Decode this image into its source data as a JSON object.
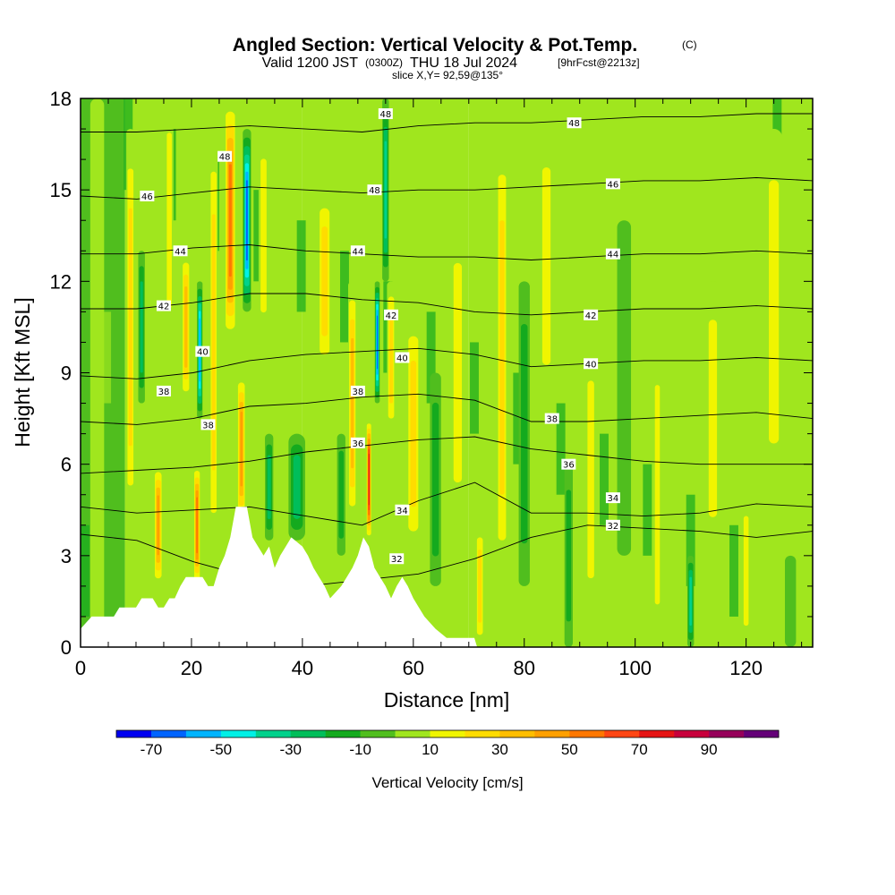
{
  "title": {
    "main": "Angled Section: Vertical Velocity & Pot.Temp.",
    "main_unit": "(C)",
    "valid_prefix": "Valid 1200 JST",
    "valid_z": "(0300Z)",
    "valid_date": "THU 18 Jul 2024",
    "valid_fcst": "[9hrFcst@2213z]",
    "slice": "slice X,Y= 92,59@135°"
  },
  "chart_data": {
    "type": "heatmap",
    "xlabel": "Distance [nm]",
    "ylabel": "Height [Kft MSL]",
    "xlim": [
      0,
      132
    ],
    "ylim": [
      0,
      18
    ],
    "x_ticks": [
      "0",
      "20",
      "40",
      "60",
      "80",
      "100",
      "120"
    ],
    "y_ticks": [
      "0",
      "3",
      "6",
      "9",
      "12",
      "15",
      "18"
    ],
    "colorbar": {
      "label": "Vertical Velocity [cm/s]",
      "tick_labels": [
        "-70",
        "-50",
        "-30",
        "-10",
        "10",
        "30",
        "50",
        "70",
        "90"
      ],
      "levels": [
        -80,
        -70,
        -60,
        -50,
        -40,
        -30,
        -20,
        -10,
        0,
        10,
        20,
        30,
        40,
        50,
        60,
        70,
        80,
        90,
        100
      ],
      "colors": [
        "#0000f0",
        "#0064ff",
        "#00b4ff",
        "#00f0e6",
        "#00d28c",
        "#00be5a",
        "#14aa1e",
        "#50be1e",
        "#a0e61e",
        "#f0f500",
        "#ffdc00",
        "#ffbe00",
        "#ffa000",
        "#ff7800",
        "#ff4614",
        "#e61414",
        "#c8003c",
        "#96005a",
        "#640078"
      ]
    },
    "terrain_kft": [
      [
        0,
        0.6
      ],
      [
        1,
        0.8
      ],
      [
        2,
        1.0
      ],
      [
        6,
        1.0
      ],
      [
        7,
        1.3
      ],
      [
        10,
        1.3
      ],
      [
        11,
        1.6
      ],
      [
        13,
        1.6
      ],
      [
        14,
        1.3
      ],
      [
        15,
        1.3
      ],
      [
        16,
        1.6
      ],
      [
        17,
        1.6
      ],
      [
        18,
        2.0
      ],
      [
        19,
        2.3
      ],
      [
        22,
        2.3
      ],
      [
        23,
        2.0
      ],
      [
        24,
        2.0
      ],
      [
        25,
        2.6
      ],
      [
        26,
        3.0
      ],
      [
        27,
        3.6
      ],
      [
        28,
        4.6
      ],
      [
        30,
        4.6
      ],
      [
        31,
        3.6
      ],
      [
        32,
        3.3
      ],
      [
        33,
        3.0
      ],
      [
        34,
        3.3
      ],
      [
        35,
        2.6
      ],
      [
        36,
        3.0
      ],
      [
        37,
        3.3
      ],
      [
        38,
        3.6
      ],
      [
        40,
        3.3
      ],
      [
        41,
        3.0
      ],
      [
        42,
        2.6
      ],
      [
        43,
        2.3
      ],
      [
        44,
        2.0
      ],
      [
        45,
        1.6
      ],
      [
        47,
        2.0
      ],
      [
        48,
        2.3
      ],
      [
        49,
        2.6
      ],
      [
        50,
        3.0
      ],
      [
        51,
        3.6
      ],
      [
        52,
        3.3
      ],
      [
        53,
        2.6
      ],
      [
        54,
        2.3
      ],
      [
        55,
        2.0
      ],
      [
        56,
        1.6
      ],
      [
        57,
        2.0
      ],
      [
        58,
        2.3
      ],
      [
        59,
        2.0
      ],
      [
        60,
        1.6
      ],
      [
        61,
        1.3
      ],
      [
        62,
        1.0
      ],
      [
        64,
        0.6
      ],
      [
        66,
        0.3
      ],
      [
        68,
        0.3
      ],
      [
        71,
        0.3
      ],
      [
        71.5,
        0
      ]
    ],
    "theta_isolines": [
      {
        "label": "32",
        "h": [
          3.7,
          3.5,
          2.8,
          2.3,
          2.0,
          2.2,
          2.4,
          2.9,
          3.6,
          4.0,
          3.9,
          3.8,
          3.6,
          3.8
        ]
      },
      {
        "label": "34",
        "h": [
          4.6,
          4.4,
          4.5,
          4.6,
          4.3,
          4.0,
          4.8,
          5.4,
          4.4,
          4.4,
          4.3,
          4.4,
          4.7,
          4.6
        ]
      },
      {
        "label": "36",
        "h": [
          5.7,
          5.8,
          5.9,
          6.1,
          6.4,
          6.6,
          6.8,
          6.9,
          6.5,
          6.3,
          6.1,
          6.0,
          6.0,
          6.0
        ]
      },
      {
        "label": "38",
        "h": [
          7.4,
          7.3,
          7.5,
          7.9,
          8.0,
          8.2,
          8.3,
          8.1,
          7.4,
          7.4,
          7.5,
          7.6,
          7.7,
          7.5
        ]
      },
      {
        "label": "40",
        "h": [
          8.9,
          8.8,
          9.0,
          9.4,
          9.6,
          9.7,
          9.8,
          9.6,
          9.2,
          9.3,
          9.4,
          9.4,
          9.5,
          9.4
        ]
      },
      {
        "label": "42",
        "h": [
          11.1,
          11.1,
          11.3,
          11.6,
          11.6,
          11.4,
          11.3,
          11.0,
          10.9,
          11.0,
          11.1,
          11.1,
          11.2,
          11.1
        ]
      },
      {
        "label": "44",
        "h": [
          12.9,
          12.9,
          13.1,
          13.2,
          13.0,
          12.9,
          12.8,
          12.8,
          12.7,
          12.8,
          12.9,
          12.9,
          13.0,
          12.9
        ]
      },
      {
        "label": "46",
        "h": [
          14.8,
          14.7,
          14.9,
          15.1,
          15.0,
          14.9,
          15.0,
          15.0,
          15.1,
          15.2,
          15.3,
          15.3,
          15.4,
          15.3
        ]
      },
      {
        "label": "48",
        "h": [
          16.9,
          16.9,
          17.0,
          17.1,
          17.0,
          16.9,
          17.1,
          17.2,
          17.2,
          17.3,
          17.4,
          17.4,
          17.5,
          17.5
        ]
      }
    ],
    "isoline_labels": [
      {
        "text": "46",
        "x": 12,
        "h": 14.8
      },
      {
        "text": "48",
        "x": 26,
        "h": 16.1
      },
      {
        "text": "44",
        "x": 18,
        "h": 13.0
      },
      {
        "text": "42",
        "x": 15,
        "h": 11.2
      },
      {
        "text": "40",
        "x": 22,
        "h": 9.7
      },
      {
        "text": "38",
        "x": 15,
        "h": 8.4
      },
      {
        "text": "38",
        "x": 23,
        "h": 7.3
      },
      {
        "text": "48",
        "x": 55,
        "h": 17.5
      },
      {
        "text": "48",
        "x": 53,
        "h": 15.0
      },
      {
        "text": "44",
        "x": 50,
        "h": 13.0
      },
      {
        "text": "42",
        "x": 56,
        "h": 10.9
      },
      {
        "text": "40",
        "x": 58,
        "h": 9.5
      },
      {
        "text": "38",
        "x": 50,
        "h": 8.4
      },
      {
        "text": "36",
        "x": 50,
        "h": 6.7
      },
      {
        "text": "34",
        "x": 58,
        "h": 4.5
      },
      {
        "text": "32",
        "x": 57,
        "h": 2.9
      },
      {
        "text": "48",
        "x": 89,
        "h": 17.2
      },
      {
        "text": "46",
        "x": 96,
        "h": 15.2
      },
      {
        "text": "44",
        "x": 96,
        "h": 12.9
      },
      {
        "text": "42",
        "x": 92,
        "h": 10.9
      },
      {
        "text": "40",
        "x": 92,
        "h": 9.3
      },
      {
        "text": "38",
        "x": 85,
        "h": 7.5
      },
      {
        "text": "36",
        "x": 88,
        "h": 6.0
      },
      {
        "text": "34",
        "x": 96,
        "h": 4.9
      },
      {
        "text": "32",
        "x": 96,
        "h": 4.0
      }
    ],
    "velocity_features": [
      {
        "x": 3,
        "h0": 0,
        "h1": 18,
        "w": 2.5,
        "v": 10
      },
      {
        "x": 9,
        "h0": 4,
        "h1": 17,
        "w": 1.5,
        "v": 25
      },
      {
        "x": 11,
        "h0": 8,
        "h1": 13,
        "w": 1.2,
        "v": -30
      },
      {
        "x": 14,
        "h0": 2,
        "h1": 6,
        "w": 1.5,
        "v": 45
      },
      {
        "x": 16,
        "h0": 10,
        "h1": 18,
        "w": 1.5,
        "v": 15
      },
      {
        "x": 19,
        "h0": 8,
        "h1": 13,
        "w": 1.5,
        "v": 40
      },
      {
        "x": 21,
        "h0": 2,
        "h1": 6,
        "w": 1.2,
        "v": 55
      },
      {
        "x": 21.5,
        "h0": 7.5,
        "h1": 12,
        "w": 1.0,
        "v": -60
      },
      {
        "x": 24,
        "h0": 3,
        "h1": 17,
        "w": 1.5,
        "v": 30
      },
      {
        "x": 27,
        "h0": 10,
        "h1": 18,
        "w": 2.0,
        "v": 55
      },
      {
        "x": 30,
        "h0": 11,
        "h1": 17,
        "w": 1.5,
        "v": -65
      },
      {
        "x": 29,
        "h0": 4,
        "h1": 9,
        "w": 1.5,
        "v": 45
      },
      {
        "x": 34,
        "h0": 3.5,
        "h1": 7,
        "w": 1.5,
        "v": -30
      },
      {
        "x": 33,
        "h0": 10,
        "h1": 17,
        "w": 1.8,
        "v": 20
      },
      {
        "x": 39,
        "h0": 3.5,
        "h1": 7,
        "w": 3.0,
        "v": -25
      },
      {
        "x": 44,
        "h0": 9,
        "h1": 15,
        "w": 2.5,
        "v": 30
      },
      {
        "x": 47,
        "h0": 3,
        "h1": 7,
        "w": 1.5,
        "v": -20
      },
      {
        "x": 49,
        "h0": 4,
        "h1": 12,
        "w": 1.5,
        "v": 35
      },
      {
        "x": 52,
        "h0": 3.5,
        "h1": 7.5,
        "w": 0.9,
        "v": 80
      },
      {
        "x": 53.5,
        "h0": 8,
        "h1": 12,
        "w": 0.9,
        "v": -65
      },
      {
        "x": 55,
        "h0": 12,
        "h1": 18,
        "w": 1.2,
        "v": -40
      },
      {
        "x": 56,
        "h0": 7,
        "h1": 12,
        "w": 1.5,
        "v": 30
      },
      {
        "x": 60,
        "h0": 3,
        "h1": 11,
        "w": 2.5,
        "v": 25
      },
      {
        "x": 64,
        "h0": 2,
        "h1": 9,
        "w": 2.0,
        "v": -15
      },
      {
        "x": 68,
        "h0": 4,
        "h1": 14,
        "w": 2.5,
        "v": 15
      },
      {
        "x": 72,
        "h0": 0,
        "h1": 4,
        "w": 1.5,
        "v": 25
      },
      {
        "x": 76,
        "h0": 2,
        "h1": 17,
        "w": 2.0,
        "v": 25
      },
      {
        "x": 80,
        "h0": 2,
        "h1": 12,
        "w": 2.0,
        "v": -15
      },
      {
        "x": 84,
        "h0": 8,
        "h1": 17,
        "w": 2.5,
        "v": 20
      },
      {
        "x": 88,
        "h0": 0,
        "h1": 6,
        "w": 1.5,
        "v": -15
      },
      {
        "x": 92,
        "h0": 1,
        "h1": 10,
        "w": 2.0,
        "v": 18
      },
      {
        "x": 98,
        "h0": 3,
        "h1": 14,
        "w": 2.5,
        "v": -12
      },
      {
        "x": 104,
        "h0": 0,
        "h1": 10,
        "w": 1.5,
        "v": 15
      },
      {
        "x": 110,
        "h0": 0,
        "h1": 3,
        "w": 1.2,
        "v": -35
      },
      {
        "x": 114,
        "h0": 3,
        "h1": 12,
        "w": 2.5,
        "v": 15
      },
      {
        "x": 120,
        "h0": 0,
        "h1": 5,
        "w": 1.5,
        "v": 20
      },
      {
        "x": 125,
        "h0": 5,
        "h1": 17,
        "w": 3.0,
        "v": 22
      },
      {
        "x": 128,
        "h0": 0,
        "h1": 3,
        "w": 2.0,
        "v": -12
      }
    ],
    "background_bands": [
      {
        "x0": 0,
        "x1": 8,
        "v": -5
      },
      {
        "x0": 8,
        "x1": 40,
        "v": 5
      },
      {
        "x0": 40,
        "x1": 70,
        "v": 5
      },
      {
        "x0": 70,
        "x1": 132,
        "v": 5
      }
    ]
  }
}
